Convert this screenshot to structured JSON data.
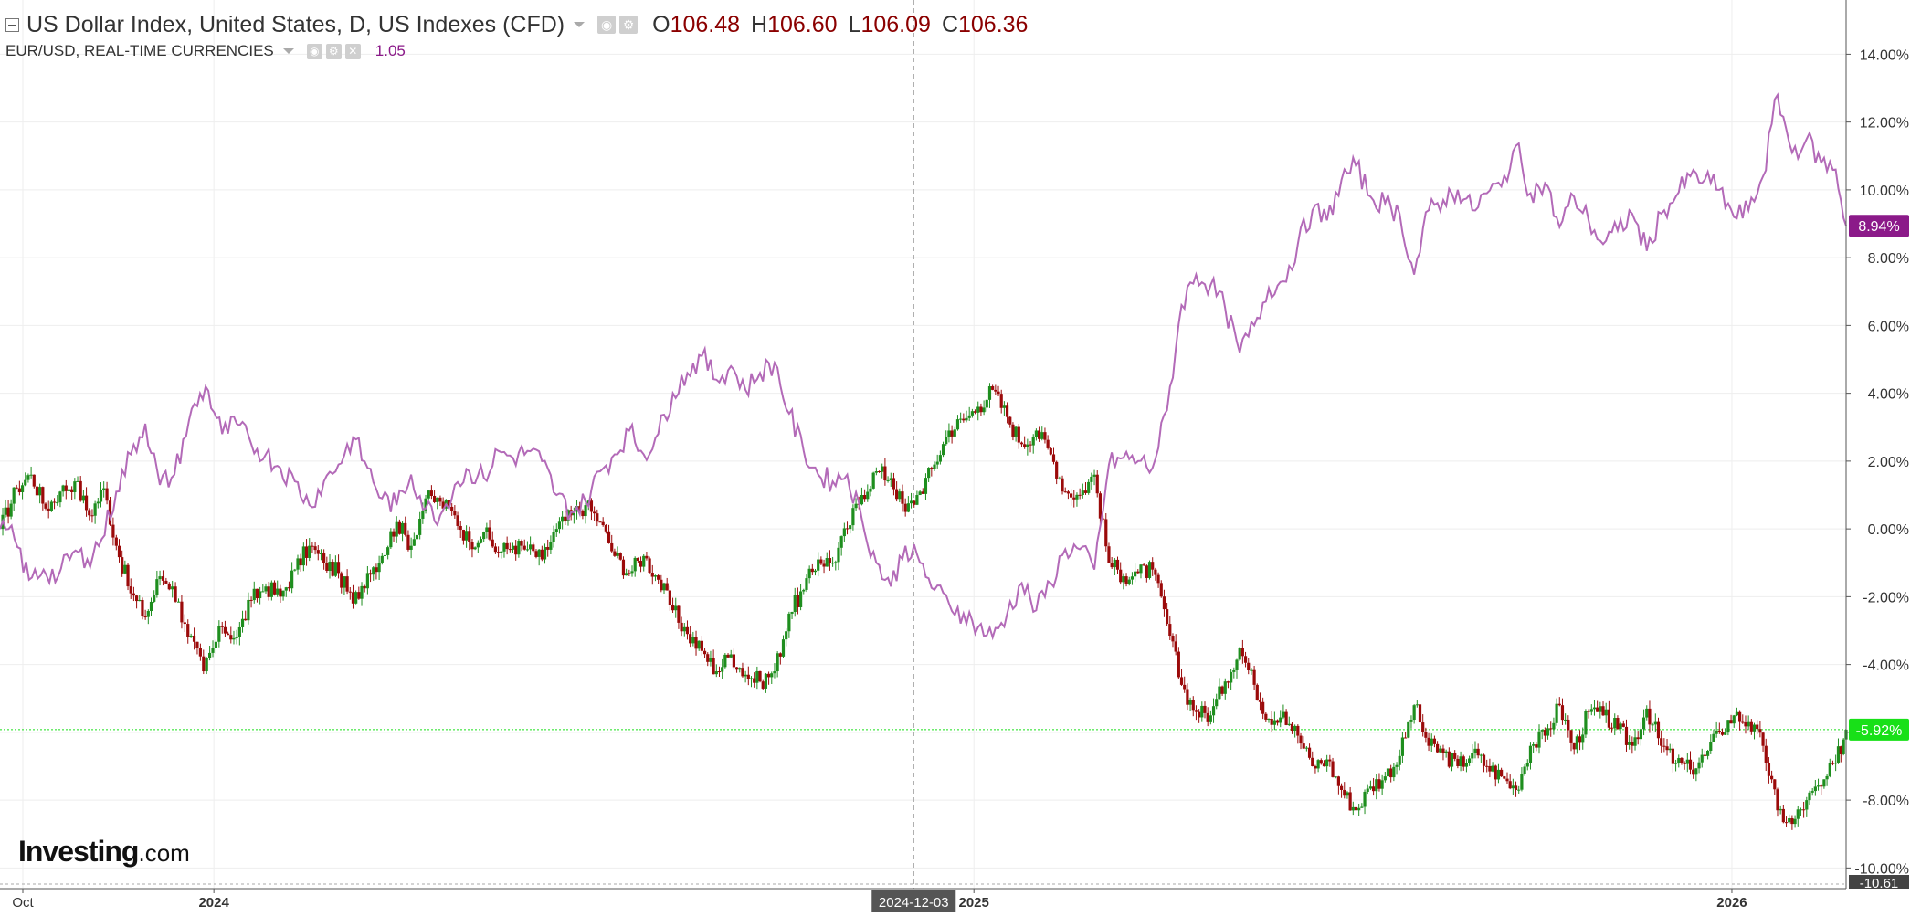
{
  "legend": {
    "main_title": "US Dollar Index, United States, D, US Indexes (CFD)",
    "open_label": "O",
    "open_value": "106.48",
    "high_label": "H",
    "high_value": "106.60",
    "low_label": "L",
    "low_value": "106.09",
    "close_label": "C",
    "close_value": "106.36",
    "compare_title": "EUR/USD, REAL-TIME CURRENCIES",
    "compare_value": "1.05"
  },
  "logo": {
    "brand": "Investing",
    "suffix": ".com"
  },
  "colors": {
    "up_candle": "#1e8e1e",
    "down_candle": "#9b0a0a",
    "compare_line": "#b36ab8",
    "compare_badge": "#8b1a89",
    "current_badge": "#18e018",
    "grid": "#eeeeee"
  },
  "chart_data": {
    "type": "candlestick-with-line-comparison",
    "yaxis": {
      "unit": "%",
      "ticks": [
        "14.00%",
        "12.00%",
        "10.00%",
        "8.00%",
        "6.00%",
        "4.00%",
        "2.00%",
        "0.00%",
        "-2.00%",
        "-4.00%",
        "-6.00%",
        "-8.00%",
        "-10.00%"
      ],
      "range": [
        -10.61,
        15.6
      ]
    },
    "xaxis": {
      "range": [
        "2023-09-20",
        "2026-02-25"
      ],
      "ticks": [
        {
          "label": "Oct",
          "date": "2023-10-01",
          "bold": false
        },
        {
          "label": "2024",
          "date": "2024-01-01",
          "bold": true
        },
        {
          "label": "2025",
          "date": "2025-01-01",
          "bold": true
        },
        {
          "label": "2026",
          "date": "2026-01-01",
          "bold": true
        }
      ]
    },
    "crosshair": {
      "date_label": "2024-12-03",
      "date": "2024-12-03"
    },
    "badges": {
      "compare_last": "8.94%",
      "main_last": "-5.92%",
      "axis_bottom": "-10.61"
    },
    "series": [
      {
        "name": "US Dollar Index",
        "style": "candlestick",
        "points": [
          [
            "2023-09-20",
            0.0
          ],
          [
            "2023-09-28",
            1.2
          ],
          [
            "2023-10-05",
            1.6
          ],
          [
            "2023-10-12",
            0.6
          ],
          [
            "2023-10-19",
            1.1
          ],
          [
            "2023-10-26",
            1.4
          ],
          [
            "2023-11-02",
            0.4
          ],
          [
            "2023-11-09",
            1.2
          ],
          [
            "2023-11-15",
            -0.5
          ],
          [
            "2023-11-22",
            -1.9
          ],
          [
            "2023-11-29",
            -2.6
          ],
          [
            "2023-12-06",
            -1.4
          ],
          [
            "2023-12-12",
            -1.7
          ],
          [
            "2023-12-18",
            -2.8
          ],
          [
            "2023-12-27",
            -4.2
          ],
          [
            "2024-01-05",
            -2.9
          ],
          [
            "2024-01-12",
            -3.2
          ],
          [
            "2024-01-19",
            -2.1
          ],
          [
            "2024-01-26",
            -1.7
          ],
          [
            "2024-02-02",
            -2.0
          ],
          [
            "2024-02-09",
            -1.2
          ],
          [
            "2024-02-16",
            -0.5
          ],
          [
            "2024-02-23",
            -1.0
          ],
          [
            "2024-03-01",
            -1.3
          ],
          [
            "2024-03-08",
            -2.2
          ],
          [
            "2024-03-15",
            -1.3
          ],
          [
            "2024-03-22",
            -0.8
          ],
          [
            "2024-03-29",
            0.2
          ],
          [
            "2024-04-05",
            -0.5
          ],
          [
            "2024-04-12",
            0.9
          ],
          [
            "2024-04-19",
            0.8
          ],
          [
            "2024-04-26",
            0.4
          ],
          [
            "2024-05-03",
            -0.4
          ],
          [
            "2024-05-10",
            -0.1
          ],
          [
            "2024-05-17",
            -0.7
          ],
          [
            "2024-05-24",
            -0.5
          ],
          [
            "2024-05-31",
            -0.6
          ],
          [
            "2024-06-07",
            -0.9
          ],
          [
            "2024-06-14",
            0.0
          ],
          [
            "2024-06-21",
            0.4
          ],
          [
            "2024-06-28",
            0.7
          ],
          [
            "2024-07-05",
            0.2
          ],
          [
            "2024-07-12",
            -0.8
          ],
          [
            "2024-07-19",
            -1.3
          ],
          [
            "2024-07-26",
            -0.8
          ],
          [
            "2024-08-02",
            -1.5
          ],
          [
            "2024-08-09",
            -2.4
          ],
          [
            "2024-08-16",
            -3.1
          ],
          [
            "2024-08-23",
            -3.6
          ],
          [
            "2024-08-30",
            -4.2
          ],
          [
            "2024-09-06",
            -3.7
          ],
          [
            "2024-09-13",
            -4.3
          ],
          [
            "2024-09-20",
            -4.5
          ],
          [
            "2024-09-27",
            -4.2
          ],
          [
            "2024-10-04",
            -2.5
          ],
          [
            "2024-10-11",
            -1.8
          ],
          [
            "2024-10-18",
            -0.9
          ],
          [
            "2024-10-25",
            -1.0
          ],
          [
            "2024-11-01",
            0.0
          ],
          [
            "2024-11-08",
            1.0
          ],
          [
            "2024-11-15",
            1.7
          ],
          [
            "2024-11-22",
            1.5
          ],
          [
            "2024-11-29",
            0.5
          ],
          [
            "2024-12-06",
            1.1
          ],
          [
            "2024-12-13",
            1.9
          ],
          [
            "2024-12-20",
            2.9
          ],
          [
            "2024-12-27",
            3.2
          ],
          [
            "2025-01-03",
            3.6
          ],
          [
            "2025-01-10",
            4.1
          ],
          [
            "2025-01-17",
            3.3
          ],
          [
            "2025-01-24",
            2.5
          ],
          [
            "2025-01-31",
            2.9
          ],
          [
            "2025-02-07",
            2.2
          ],
          [
            "2025-02-14",
            1.1
          ],
          [
            "2025-02-21",
            1.0
          ],
          [
            "2025-02-28",
            1.6
          ],
          [
            "2025-03-07",
            -1.0
          ],
          [
            "2025-03-14",
            -1.4
          ],
          [
            "2025-03-21",
            -1.3
          ],
          [
            "2025-03-28",
            -1.2
          ],
          [
            "2025-04-04",
            -2.8
          ],
          [
            "2025-04-11",
            -4.6
          ],
          [
            "2025-04-18",
            -5.4
          ],
          [
            "2025-04-25",
            -5.5
          ],
          [
            "2025-05-02",
            -4.5
          ],
          [
            "2025-05-09",
            -3.5
          ],
          [
            "2025-05-16",
            -4.6
          ],
          [
            "2025-05-23",
            -5.6
          ],
          [
            "2025-05-30",
            -5.4
          ],
          [
            "2025-06-06",
            -6.1
          ],
          [
            "2025-06-13",
            -7.0
          ],
          [
            "2025-06-20",
            -6.8
          ],
          [
            "2025-06-27",
            -7.7
          ],
          [
            "2025-07-04",
            -8.3
          ],
          [
            "2025-07-11",
            -7.6
          ],
          [
            "2025-07-18",
            -7.3
          ],
          [
            "2025-07-25",
            -6.7
          ],
          [
            "2025-08-01",
            -5.2
          ],
          [
            "2025-08-08",
            -6.4
          ],
          [
            "2025-08-15",
            -6.6
          ],
          [
            "2025-08-22",
            -7.0
          ],
          [
            "2025-08-29",
            -6.6
          ],
          [
            "2025-09-05",
            -7.0
          ],
          [
            "2025-09-12",
            -7.3
          ],
          [
            "2025-09-19",
            -7.7
          ],
          [
            "2025-09-26",
            -6.4
          ],
          [
            "2025-10-03",
            -6.1
          ],
          [
            "2025-10-10",
            -5.2
          ],
          [
            "2025-10-17",
            -6.5
          ],
          [
            "2025-10-24",
            -5.4
          ],
          [
            "2025-10-31",
            -5.5
          ],
          [
            "2025-11-07",
            -5.9
          ],
          [
            "2025-11-14",
            -6.4
          ],
          [
            "2025-11-21",
            -5.3
          ],
          [
            "2025-11-28",
            -6.4
          ],
          [
            "2025-12-05",
            -6.9
          ],
          [
            "2025-12-12",
            -7.1
          ],
          [
            "2025-12-19",
            -6.7
          ],
          [
            "2025-12-26",
            -6.0
          ],
          [
            "2026-01-02",
            -5.5
          ],
          [
            "2026-01-09",
            -5.7
          ],
          [
            "2026-01-16",
            -6.4
          ],
          [
            "2026-01-23",
            -8.3
          ],
          [
            "2026-01-30",
            -8.7
          ],
          [
            "2026-02-06",
            -8.0
          ],
          [
            "2026-02-13",
            -7.6
          ],
          [
            "2026-02-20",
            -6.9
          ],
          [
            "2026-02-25",
            -5.92
          ]
        ]
      },
      {
        "name": "EUR/USD",
        "style": "line",
        "points": [
          [
            "2023-09-20",
            0.0
          ],
          [
            "2023-09-27",
            -0.3
          ],
          [
            "2023-10-04",
            -1.5
          ],
          [
            "2023-10-11",
            -1.2
          ],
          [
            "2023-10-18",
            -1.4
          ],
          [
            "2023-10-25",
            -0.7
          ],
          [
            "2023-11-01",
            -0.9
          ],
          [
            "2023-11-08",
            -0.3
          ],
          [
            "2023-11-15",
            1.1
          ],
          [
            "2023-11-22",
            2.2
          ],
          [
            "2023-11-29",
            3.1
          ],
          [
            "2023-12-06",
            1.3
          ],
          [
            "2023-12-13",
            1.6
          ],
          [
            "2023-12-20",
            3.2
          ],
          [
            "2023-12-28",
            4.2
          ],
          [
            "2024-01-05",
            2.8
          ],
          [
            "2024-01-12",
            3.1
          ],
          [
            "2024-01-19",
            2.5
          ],
          [
            "2024-01-26",
            2.2
          ],
          [
            "2024-02-02",
            1.8
          ],
          [
            "2024-02-09",
            1.4
          ],
          [
            "2024-02-16",
            0.7
          ],
          [
            "2024-02-23",
            1.4
          ],
          [
            "2024-03-01",
            1.9
          ],
          [
            "2024-03-08",
            2.7
          ],
          [
            "2024-03-15",
            1.8
          ],
          [
            "2024-03-22",
            0.9
          ],
          [
            "2024-03-29",
            0.7
          ],
          [
            "2024-04-05",
            1.6
          ],
          [
            "2024-04-12",
            0.6
          ],
          [
            "2024-04-19",
            0.4
          ],
          [
            "2024-04-26",
            1.3
          ],
          [
            "2024-05-03",
            1.7
          ],
          [
            "2024-05-10",
            1.5
          ],
          [
            "2024-05-17",
            2.3
          ],
          [
            "2024-05-24",
            2.1
          ],
          [
            "2024-05-31",
            2.3
          ],
          [
            "2024-06-07",
            2.0
          ],
          [
            "2024-06-14",
            1.0
          ],
          [
            "2024-06-21",
            0.5
          ],
          [
            "2024-06-28",
            0.8
          ],
          [
            "2024-07-05",
            1.7
          ],
          [
            "2024-07-12",
            2.2
          ],
          [
            "2024-07-19",
            2.9
          ],
          [
            "2024-07-26",
            2.2
          ],
          [
            "2024-08-02",
            2.8
          ],
          [
            "2024-08-09",
            4.0
          ],
          [
            "2024-08-16",
            4.6
          ],
          [
            "2024-08-23",
            5.1
          ],
          [
            "2024-08-30",
            4.4
          ],
          [
            "2024-09-06",
            4.8
          ],
          [
            "2024-09-13",
            4.1
          ],
          [
            "2024-09-20",
            4.6
          ],
          [
            "2024-09-27",
            4.9
          ],
          [
            "2024-10-04",
            3.4
          ],
          [
            "2024-10-11",
            2.3
          ],
          [
            "2024-10-18",
            1.6
          ],
          [
            "2024-10-25",
            1.4
          ],
          [
            "2024-11-01",
            1.6
          ],
          [
            "2024-11-08",
            0.3
          ],
          [
            "2024-11-15",
            -1.0
          ],
          [
            "2024-11-22",
            -1.7
          ],
          [
            "2024-11-29",
            -0.5
          ],
          [
            "2024-12-06",
            -1.0
          ],
          [
            "2024-12-13",
            -1.8
          ],
          [
            "2024-12-20",
            -2.2
          ],
          [
            "2024-12-27",
            -2.5
          ],
          [
            "2025-01-03",
            -2.9
          ],
          [
            "2025-01-10",
            -3.2
          ],
          [
            "2025-01-17",
            -2.5
          ],
          [
            "2025-01-24",
            -1.6
          ],
          [
            "2025-01-31",
            -2.4
          ],
          [
            "2025-02-07",
            -1.6
          ],
          [
            "2025-02-14",
            -0.6
          ],
          [
            "2025-02-21",
            -0.6
          ],
          [
            "2025-02-28",
            -1.2
          ],
          [
            "2025-03-07",
            1.9
          ],
          [
            "2025-03-14",
            2.1
          ],
          [
            "2025-03-21",
            2.0
          ],
          [
            "2025-03-28",
            1.8
          ],
          [
            "2025-04-04",
            3.5
          ],
          [
            "2025-04-11",
            6.6
          ],
          [
            "2025-04-18",
            7.5
          ],
          [
            "2025-04-25",
            7.2
          ],
          [
            "2025-05-02",
            6.5
          ],
          [
            "2025-05-09",
            5.2
          ],
          [
            "2025-05-16",
            6.0
          ],
          [
            "2025-05-23",
            7.1
          ],
          [
            "2025-05-30",
            7.3
          ],
          [
            "2025-06-06",
            8.4
          ],
          [
            "2025-06-13",
            9.4
          ],
          [
            "2025-06-20",
            9.1
          ],
          [
            "2025-06-27",
            10.3
          ],
          [
            "2025-07-04",
            10.7
          ],
          [
            "2025-07-11",
            9.8
          ],
          [
            "2025-07-18",
            9.6
          ],
          [
            "2025-07-25",
            9.3
          ],
          [
            "2025-08-01",
            7.5
          ],
          [
            "2025-08-08",
            9.4
          ],
          [
            "2025-08-15",
            9.7
          ],
          [
            "2025-08-22",
            10.0
          ],
          [
            "2025-08-29",
            9.4
          ],
          [
            "2025-09-05",
            9.9
          ],
          [
            "2025-09-12",
            10.1
          ],
          [
            "2025-09-19",
            11.3
          ],
          [
            "2025-09-26",
            9.9
          ],
          [
            "2025-10-03",
            10.2
          ],
          [
            "2025-10-10",
            8.9
          ],
          [
            "2025-10-17",
            9.8
          ],
          [
            "2025-10-24",
            9.1
          ],
          [
            "2025-10-31",
            8.4
          ],
          [
            "2025-11-07",
            8.8
          ],
          [
            "2025-11-14",
            9.3
          ],
          [
            "2025-11-21",
            8.2
          ],
          [
            "2025-11-28",
            9.3
          ],
          [
            "2025-12-05",
            9.8
          ],
          [
            "2025-12-12",
            10.4
          ],
          [
            "2025-12-19",
            10.3
          ],
          [
            "2025-12-26",
            10.0
          ],
          [
            "2026-01-02",
            9.2
          ],
          [
            "2026-01-09",
            9.4
          ],
          [
            "2026-01-16",
            10.4
          ],
          [
            "2026-01-23",
            12.8
          ],
          [
            "2026-01-30",
            11.1
          ],
          [
            "2026-02-06",
            11.5
          ],
          [
            "2026-02-13",
            10.8
          ],
          [
            "2026-02-20",
            10.6
          ],
          [
            "2026-02-25",
            8.94
          ]
        ]
      }
    ]
  }
}
